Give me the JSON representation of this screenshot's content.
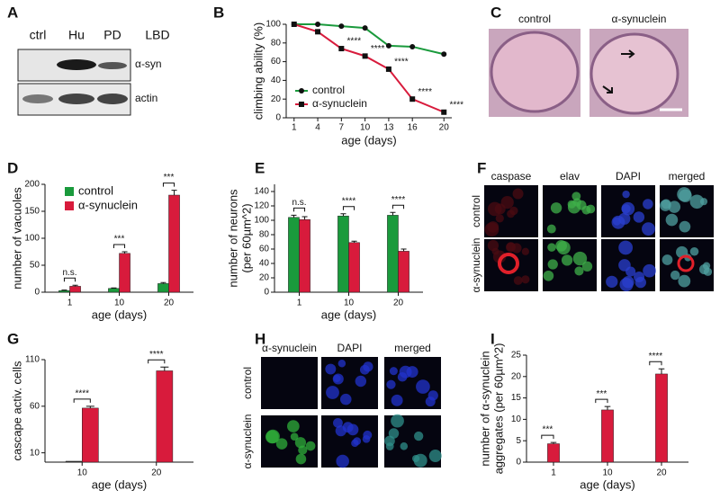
{
  "panel_letters": [
    "A",
    "B",
    "C",
    "D",
    "E",
    "F",
    "G",
    "H",
    "I"
  ],
  "blot": {
    "lanes": [
      "ctrl",
      "Hu",
      "PD",
      "LBD"
    ],
    "rows": [
      "α-syn",
      "actin"
    ]
  },
  "histology": {
    "labels": [
      "control",
      "α-synuclein"
    ]
  },
  "panel_F": {
    "columns": [
      "caspase",
      "elav",
      "DAPI",
      "merged"
    ],
    "rows": [
      "control",
      "α-synuclein"
    ]
  },
  "panel_H": {
    "columns": [
      "α-synuclein",
      "DAPI",
      "merged"
    ],
    "rows": [
      "control",
      "α-synuclein"
    ]
  },
  "chart_data": [
    {
      "type": "line",
      "xlabel": "age (days)",
      "ylabel": [
        "climbing ability (%)"
      ],
      "x": [
        1,
        4,
        7,
        10,
        13,
        16,
        20
      ],
      "xlim": [
        0,
        21
      ],
      "xticks": [
        1,
        4,
        7,
        10,
        13,
        16,
        20
      ],
      "ylim": [
        0,
        100
      ],
      "yticks": [
        0,
        20,
        40,
        60,
        80,
        100
      ],
      "legend": "lower left",
      "series": [
        {
          "name": "control",
          "color": "#1a9a3c",
          "marker": "circle",
          "values": [
            100,
            100,
            98,
            96,
            77,
            76,
            68
          ]
        },
        {
          "name": "α-synuclein",
          "color": "#d81b3c",
          "marker": "square",
          "values": [
            100,
            92,
            74,
            66,
            52,
            20,
            6
          ]
        }
      ],
      "annotations": [
        {
          "x": 7,
          "text": "****"
        },
        {
          "x": 10,
          "text": "****"
        },
        {
          "x": 13,
          "text": "****"
        },
        {
          "x": 16,
          "text": "****"
        },
        {
          "x": 20,
          "text": "****"
        }
      ]
    },
    {
      "type": "bar",
      "xlabel": "age (days)",
      "ylabel": [
        "number of vacuoles"
      ],
      "categories": [
        "1",
        "10",
        "20"
      ],
      "ylim": [
        0,
        200
      ],
      "yticks": [
        0,
        50,
        100,
        150,
        200
      ],
      "legend": "upper left",
      "series": [
        {
          "name": "control",
          "color": "#1a9a3c",
          "values": [
            3,
            7,
            16
          ],
          "errors": [
            1,
            1,
            2
          ]
        },
        {
          "name": "α-synuclein",
          "color": "#d81b3c",
          "values": [
            11,
            72,
            180
          ],
          "errors": [
            2,
            3,
            9
          ]
        }
      ],
      "significance": [
        "n.s.",
        "***",
        "***"
      ]
    },
    {
      "type": "bar",
      "xlabel": "age (days)",
      "ylabel": [
        "number of neurons",
        "(per 60µm^2)"
      ],
      "categories": [
        "1",
        "10",
        "20"
      ],
      "ylim": [
        0,
        150
      ],
      "yticks": [
        0,
        20,
        40,
        60,
        80,
        100,
        120,
        140
      ],
      "series": [
        {
          "color": "#1a9a3c",
          "values": [
            104,
            106,
            107
          ],
          "errors": [
            3,
            3,
            4
          ]
        },
        {
          "color": "#d81b3c",
          "values": [
            101,
            69,
            57
          ],
          "errors": [
            4,
            2,
            3
          ]
        }
      ],
      "significance": [
        "n.s.",
        "****",
        "****"
      ]
    },
    {
      "type": "bar",
      "xlabel": "age (days)",
      "ylabel": [
        "cascape activ. cells"
      ],
      "categories": [
        "10",
        "20"
      ],
      "ylim": [
        0,
        110
      ],
      "yticks": [
        10,
        60,
        110
      ],
      "series": [
        {
          "color": "#333333",
          "values": [
            1,
            0
          ]
        },
        {
          "color": "#d81b3c",
          "values": [
            58,
            98
          ],
          "errors": [
            2,
            4
          ]
        }
      ],
      "significance": [
        "****",
        "****"
      ]
    },
    {
      "type": "bar",
      "xlabel": "age (days)",
      "ylabel": [
        "number of α-synuclein",
        "aggregates (per 60µm^2)"
      ],
      "categories": [
        "1",
        "10",
        "20"
      ],
      "ylim": [
        0,
        25
      ],
      "yticks": [
        0,
        5,
        10,
        15,
        20,
        25
      ],
      "series": [
        {
          "color": "#d81b3c",
          "values": [
            4.3,
            12.2,
            20.6
          ],
          "errors": [
            0.3,
            0.8,
            1.2
          ]
        }
      ],
      "significance": [
        "***",
        "***",
        "****"
      ]
    }
  ]
}
